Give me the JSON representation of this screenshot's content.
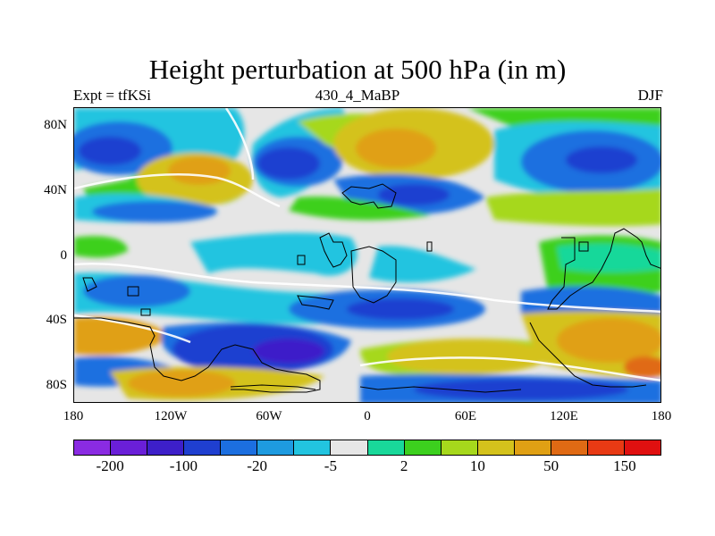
{
  "title": "Height perturbation at 500 hPa (in m)",
  "left_label": "Expt = tfKSi",
  "center_label": "430_4_MaBP",
  "right_label": "DJF",
  "lat_ticks": [
    "80N",
    "40N",
    "0",
    "40S",
    "80S"
  ],
  "lon_ticks": [
    "180",
    "120W",
    "60W",
    "0",
    "60E",
    "120E",
    "180"
  ],
  "colorbar": {
    "colors": [
      "#8a2be2",
      "#6a1fd8",
      "#3d1fc9",
      "#1f3fd0",
      "#1c6fe0",
      "#1e9be0",
      "#22c4e0",
      "#e6e6e6",
      "#19d89a",
      "#3cd01e",
      "#a6d81c",
      "#d4c21c",
      "#e0a014",
      "#e06a14",
      "#e83a14",
      "#e01010"
    ],
    "labels": [
      "-200",
      "-100",
      "-20",
      "-5",
      "2",
      "10",
      "50",
      "150"
    ]
  },
  "palette": {
    "blue_dark": "#1f3fd0",
    "blue": "#1c6fe0",
    "cyan": "#1e9be0",
    "light_cyan": "#22c4e0",
    "neutral": "#e6e6e6",
    "green": "#3cd01e",
    "yellow_green": "#a6d81c",
    "yellow": "#d4c21c",
    "orange": "#e0a014"
  }
}
